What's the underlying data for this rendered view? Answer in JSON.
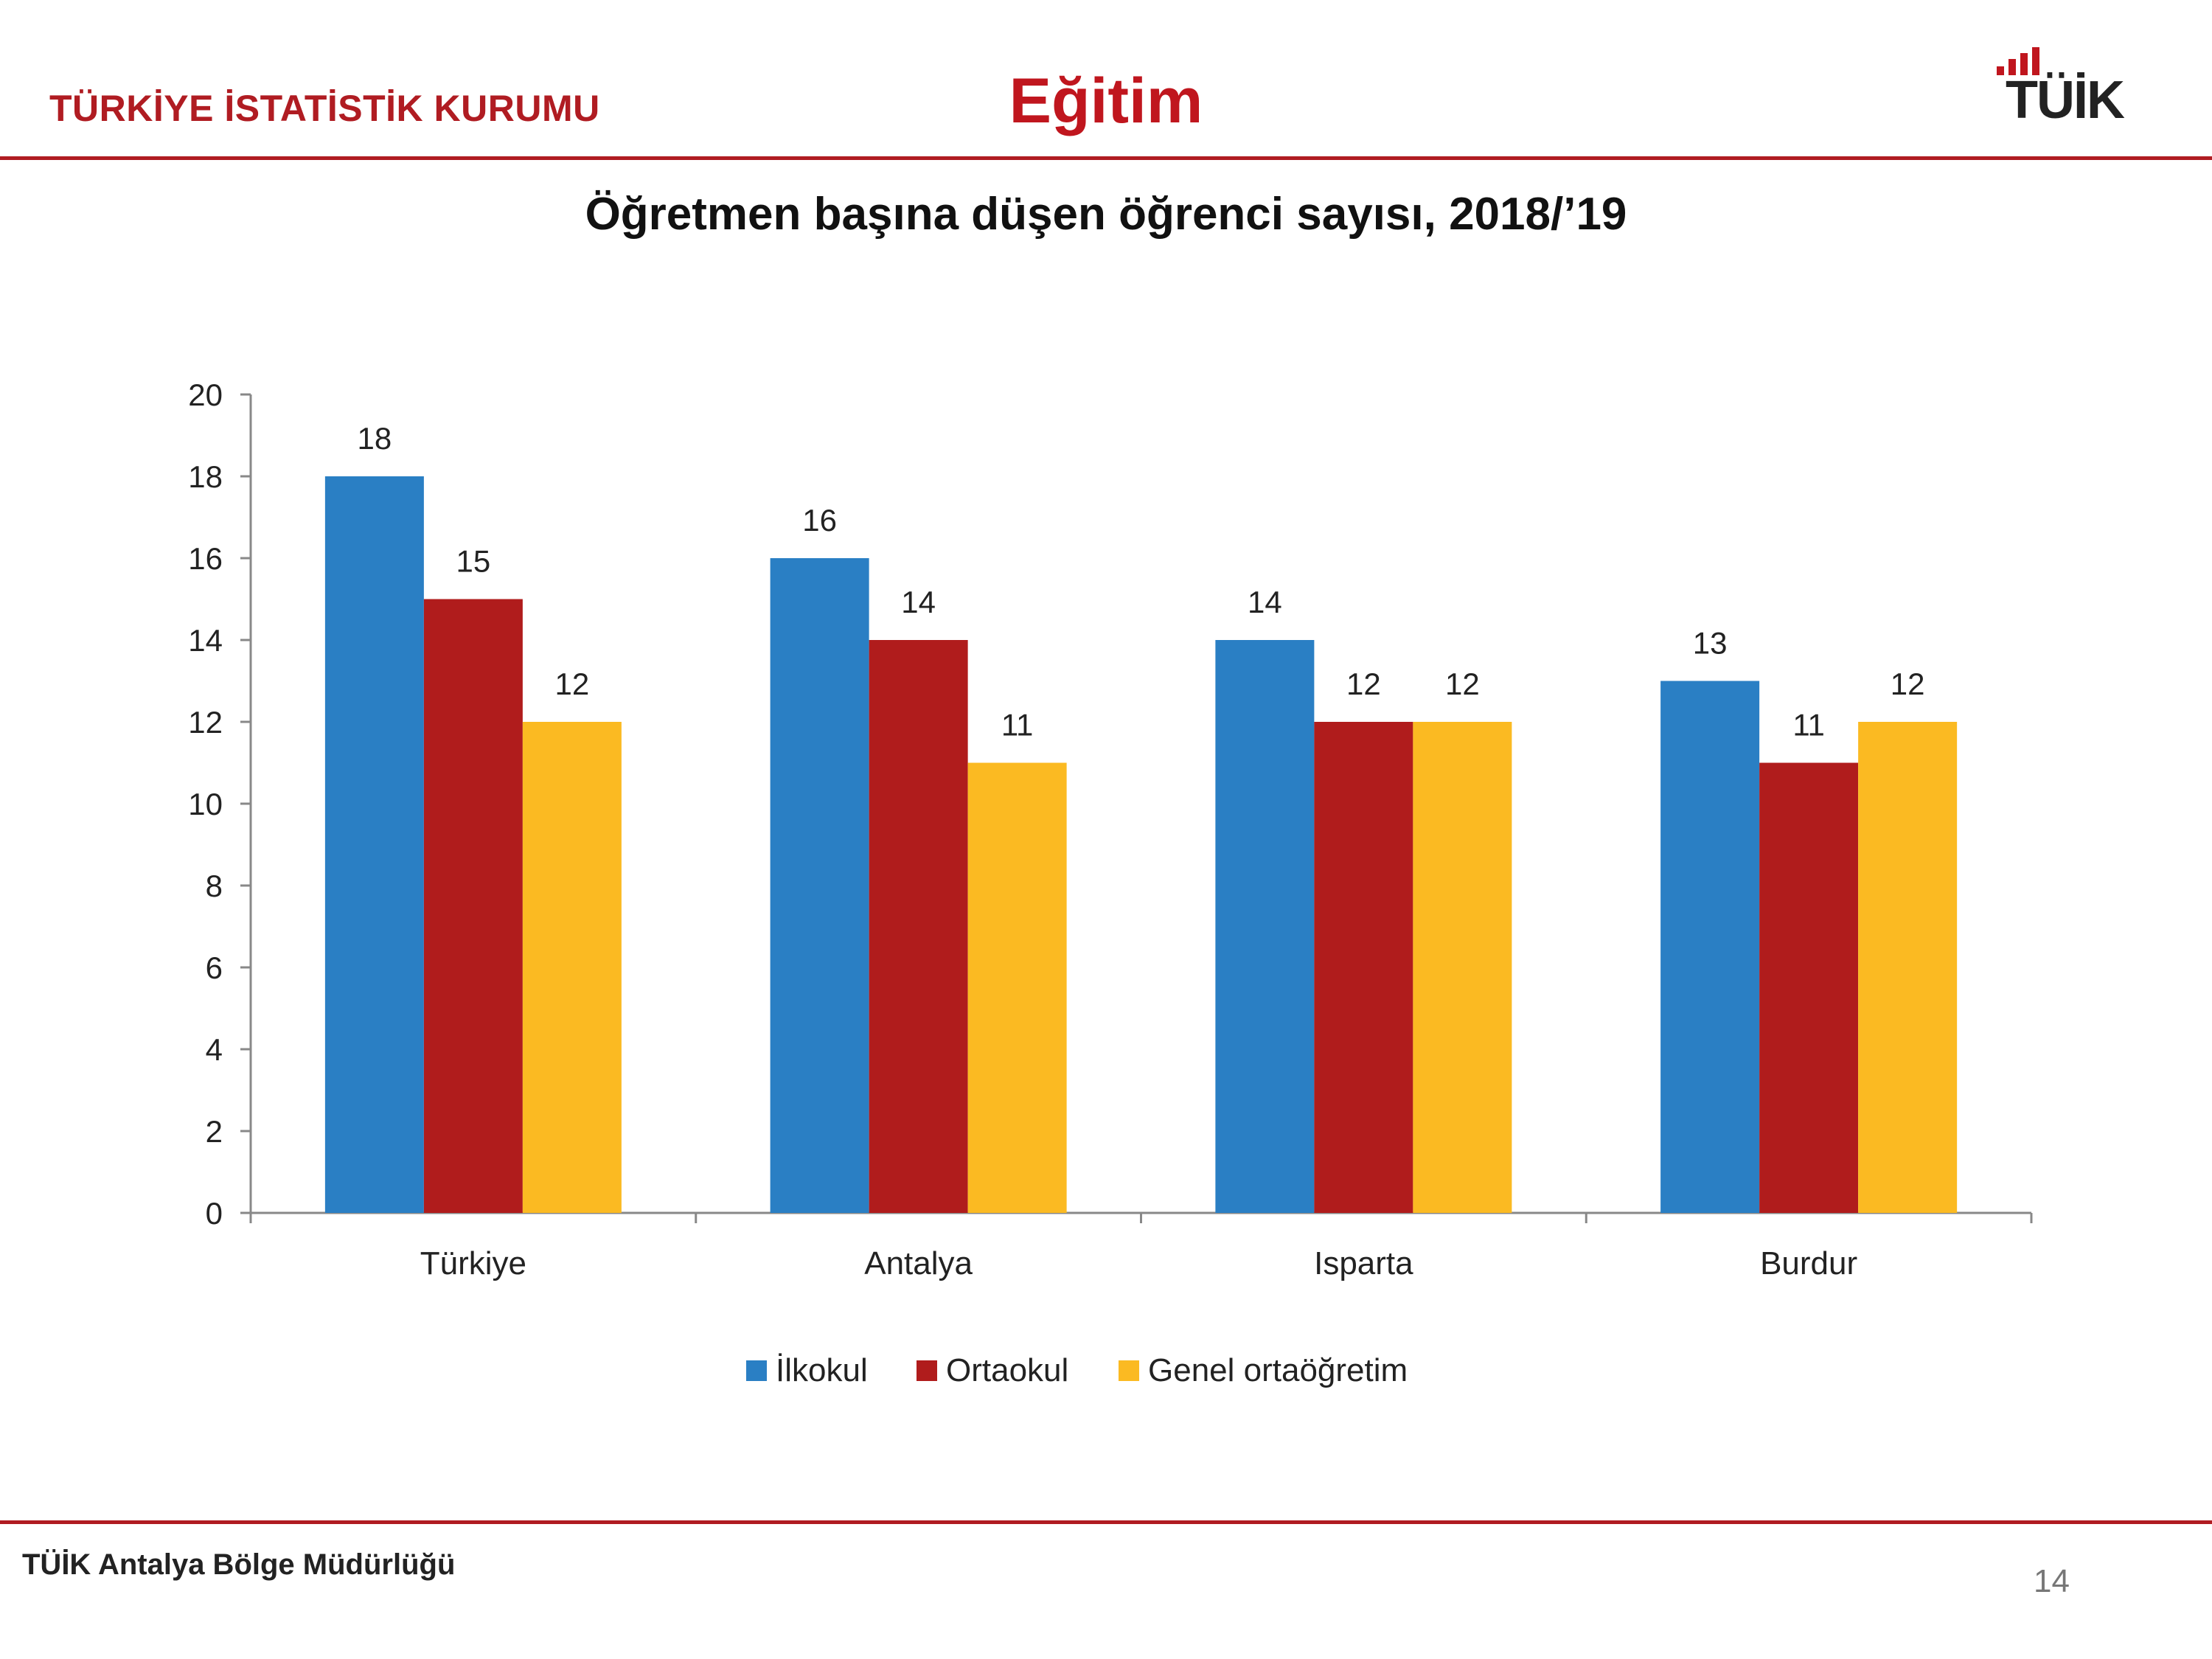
{
  "header": {
    "organization": "TÜRKİYE İSTATİSTİK KURUMU",
    "section_title": "Eğitim",
    "logo_text": "TÜİK",
    "logo_icon": "tuik-logo"
  },
  "colors": {
    "brand_red": "#b01c22",
    "series": [
      "#2a7fc4",
      "#b01c1c",
      "#fbba22"
    ]
  },
  "chart_data": {
    "type": "bar",
    "title": "Öğretmen başına düşen öğrenci sayısı, 2018/’19",
    "xlabel": "",
    "ylabel": "",
    "categories": [
      "Türkiye",
      "Antalya",
      "Isparta",
      "Burdur"
    ],
    "series": [
      {
        "name": "İlkokul",
        "values": [
          18,
          16,
          14,
          13
        ]
      },
      {
        "name": "Ortaokul",
        "values": [
          15,
          14,
          12,
          11
        ]
      },
      {
        "name": "Genel ortaöğretim",
        "values": [
          12,
          11,
          12,
          12
        ]
      }
    ],
    "ylim": [
      0,
      20
    ],
    "yticks": [
      0,
      2,
      4,
      6,
      8,
      10,
      12,
      14,
      16,
      18,
      20
    ],
    "grid": false,
    "data_labels": true,
    "legend_position": "bottom"
  },
  "footer": {
    "text": "TÜİK Antalya Bölge Müdürlüğü",
    "page_number": "14"
  }
}
